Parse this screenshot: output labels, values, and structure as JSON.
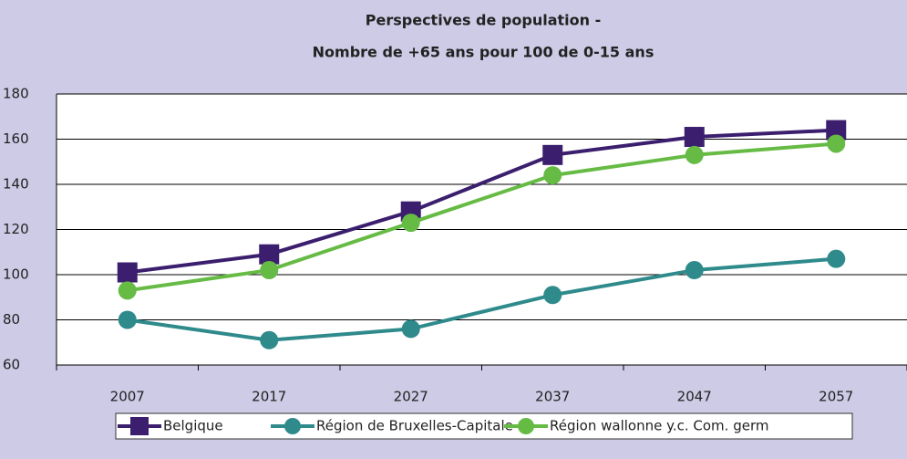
{
  "chart_data": {
    "type": "line",
    "title": "Perspectives de population -",
    "subtitle": "Nombre de +65 ans pour 100 de 0-15 ans",
    "categories": [
      "2007",
      "2017",
      "2027",
      "2037",
      "2047",
      "2057"
    ],
    "series": [
      {
        "name": "Belgique",
        "color": "#3b1f6e",
        "marker": "square",
        "values": [
          101,
          109,
          128,
          153,
          161,
          164
        ]
      },
      {
        "name": "Région de Bruxelles-Capitale",
        "color": "#2f8a8c",
        "marker": "circle",
        "values": [
          80,
          71,
          76,
          91,
          102,
          107
        ]
      },
      {
        "name": "Région wallonne y.c. Com. germ",
        "color": "#66bb44",
        "marker": "circle",
        "values": [
          93,
          102,
          123,
          144,
          153,
          158
        ]
      }
    ],
    "ylim": [
      60,
      180
    ],
    "yticks": [
      60,
      80,
      100,
      120,
      140,
      160,
      180
    ],
    "grid": true,
    "legend": "bottom"
  }
}
